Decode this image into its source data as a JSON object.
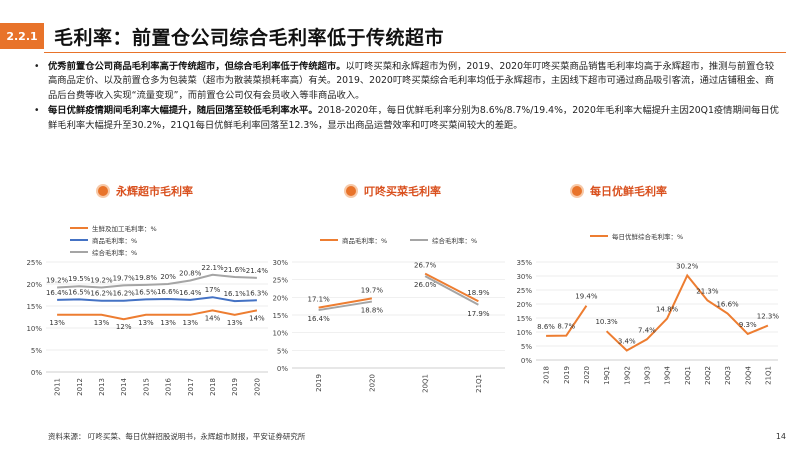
{
  "header": {
    "section": "2.2.1",
    "title": "毛利率：前置仓公司综合毛利率低于传统超市"
  },
  "bullets": [
    {
      "bold": "优秀前置仓公司商品毛利率高于传统超市，但综合毛利率低于传统超市。",
      "text": "以叮咚买菜和永辉超市为例，2019、2020年叮咚买菜商品销售毛利率均高于永辉超市，推测与前置仓较高商品定价、以及前置仓多为包装菜（超市为散装菜损耗率高）有关。2019、2020叮咚买菜综合毛利率均低于永辉超市，主因线下超市可通过商品吸引客流，通过店铺租金、商品后台费等收入实现“流量变现”，而前置仓公司仅有会员收入等非商品收入。"
    },
    {
      "bold": "每日优鲜疫情期间毛利率大幅提升，随后回落至较低毛利率水平。",
      "text": "2018-2020年，每日优鲜毛利率分别为8.6%/8.7%/19.4%，2020年毛利率大幅提升主因20Q1疫情期间每日优鲜毛利率大幅提升至30.2%，21Q1每日优鲜毛利率回落至12.3%，显示出商品运营效率和叮咚买菜间较大的差距。"
    }
  ],
  "chart_titles": [
    "永辉超市毛利率",
    "叮咚买菜毛利率",
    "每日优鲜毛利率"
  ],
  "chart_data": [
    {
      "type": "line",
      "title": "永辉超市毛利率",
      "x": [
        "2011",
        "2012",
        "2013",
        "2014",
        "2015",
        "2016",
        "2017",
        "2018",
        "2019",
        "2020"
      ],
      "series": [
        {
          "name": "生鲜及加工毛利率：%",
          "values": [
            13,
            13,
            13,
            12,
            13,
            13,
            13,
            14,
            13,
            14
          ],
          "labels": [
            "13%",
            "",
            "13%",
            "12%",
            "13%",
            "13%",
            "13%",
            "14%",
            "13%",
            "14%"
          ]
        },
        {
          "name": "商品毛利率：%",
          "values": [
            16.4,
            16.5,
            16.2,
            16.2,
            16.5,
            16.6,
            16.4,
            17,
            16.1,
            16.3
          ],
          "labels": [
            "16.4%",
            "16.5%",
            "16.2%",
            "16.2%",
            "16.5%",
            "16.6%",
            "16.4%",
            "17%",
            "16.1%",
            "16.3%"
          ]
        },
        {
          "name": "综合毛利率：%",
          "values": [
            19.2,
            19.5,
            19.2,
            19.7,
            19.8,
            20,
            20.8,
            22.1,
            21.6,
            21.4
          ],
          "labels": [
            "19.2%",
            "19.5%",
            "19.2%",
            "19.7%",
            "19.8%",
            "20%",
            "20.8%",
            "22.1%",
            "21.6%",
            "21.4%"
          ]
        }
      ],
      "yticks": [
        "0%",
        "5%",
        "10%",
        "15%",
        "20%",
        "25%"
      ],
      "ylim": [
        0,
        25
      ]
    },
    {
      "type": "line",
      "title": "叮咚买菜毛利率",
      "x": [
        "2019",
        "2020",
        "20Q1",
        "21Q1"
      ],
      "series": [
        {
          "name": "商品毛利率：%",
          "values": [
            17.1,
            19.7,
            26.7,
            18.9
          ],
          "labels": [
            "17.1%",
            "19.7%",
            "26.7%",
            "18.9%"
          ]
        },
        {
          "name": "综合毛利率：%",
          "values": [
            16.4,
            18.8,
            26.0,
            17.9
          ],
          "labels": [
            "16.4%",
            "18.8%",
            "26.0%",
            "17.9%"
          ]
        }
      ],
      "yticks": [
        "0%",
        "5%",
        "10%",
        "15%",
        "20%",
        "25%",
        "30%"
      ],
      "ylim": [
        0,
        30
      ]
    },
    {
      "type": "line",
      "title": "每日优鲜毛利率",
      "x": [
        "2018",
        "2019",
        "2020",
        "19Q1",
        "19Q2",
        "19Q3",
        "19Q4",
        "20Q1",
        "20Q2",
        "20Q3",
        "20Q4",
        "21Q1"
      ],
      "series": [
        {
          "name": "每日优鲜综合毛利率：%",
          "values": [
            8.6,
            8.7,
            19.4,
            10.3,
            3.4,
            7.4,
            14.8,
            30.2,
            21.3,
            16.6,
            9.3,
            12.3
          ],
          "labels": [
            "8.6%",
            "8.7%",
            "19.4%",
            "10.3%",
            "3.4%",
            "7.4%",
            "14.8%",
            "30.2%",
            "21.3%",
            "16.6%",
            "9.3%",
            "12.3%"
          ]
        }
      ],
      "yticks": [
        "0%",
        "5%",
        "10%",
        "15%",
        "20%",
        "25%",
        "30%",
        "35%"
      ],
      "ylim": [
        0,
        35
      ]
    }
  ],
  "colors": {
    "accent": "#e8732a",
    "blue": "#4472c4",
    "gray": "#a5a5a5",
    "orange": "#ed7d31"
  },
  "footer": {
    "source": "资料来源：  叮咚买菜、每日优鲜招股说明书，永辉超市财报，平安证券研究所",
    "page": "14"
  }
}
